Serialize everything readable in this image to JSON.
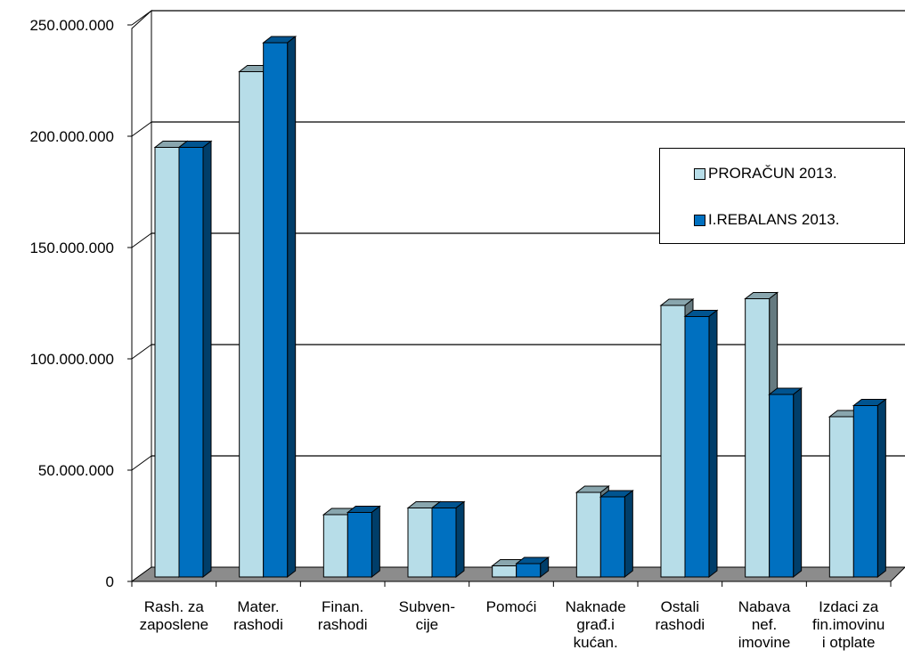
{
  "chart_data": {
    "type": "bar",
    "title": "",
    "xlabel": "",
    "ylabel": "",
    "ylim": [
      0,
      250000000
    ],
    "yticks": [
      {
        "value": 0,
        "label": "0"
      },
      {
        "value": 50000000,
        "label": "50.000.000"
      },
      {
        "value": 100000000,
        "label": "100.000.000"
      },
      {
        "value": 150000000,
        "label": "150.000.000"
      },
      {
        "value": 200000000,
        "label": "200.000.000"
      },
      {
        "value": 250000000,
        "label": "250.000.000"
      }
    ],
    "categories": [
      [
        "Rash. za",
        "zaposlene"
      ],
      [
        "Mater.",
        "rashodi"
      ],
      [
        "Finan.",
        "rashodi"
      ],
      [
        "Subven-",
        "cije"
      ],
      [
        "Pomoći"
      ],
      [
        "Naknade",
        "građ.i",
        "kućan."
      ],
      [
        "Ostali",
        "rashodi"
      ],
      [
        "Nabava",
        "nef.",
        "imovine"
      ],
      [
        "Izdaci za",
        "fin.imovinu",
        "i otplate"
      ]
    ],
    "series": [
      {
        "name": "PRORAČUN 2013.",
        "color": "#b7dde8",
        "values": [
          193000000,
          227000000,
          28000000,
          31000000,
          5000000,
          38000000,
          122000000,
          125000000,
          72000000
        ]
      },
      {
        "name": "I.REBALANS 2013.",
        "color": "#0070c0",
        "values": [
          193000000,
          240000000,
          29000000,
          31000000,
          6000000,
          36000000,
          117000000,
          82000000,
          77000000
        ]
      }
    ],
    "grid": true,
    "legend_position": "right"
  }
}
